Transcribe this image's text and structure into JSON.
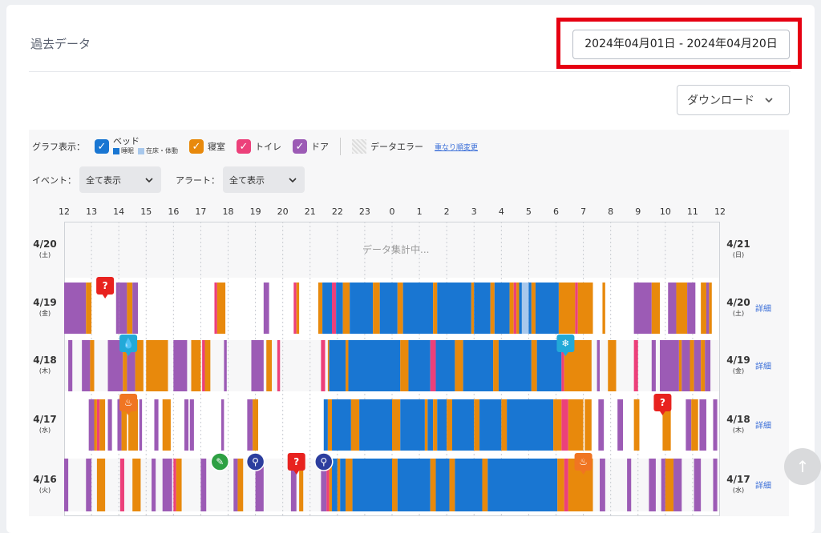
{
  "header": {
    "title": "過去データ",
    "date_range": "2024年04月01日 - 2024年04月20日",
    "download_label": "ダウンロード"
  },
  "legend": {
    "graph_label": "グラフ表示：",
    "bed_label": "ベッド",
    "bed_sleep": "睡眠",
    "bed_awake": "在床・体動",
    "bedroom_label": "寝室",
    "toilet_label": "トイレ",
    "door_label": "ドア",
    "error_label": "データエラー",
    "reorder_link": "重なり順変更"
  },
  "filters": {
    "event_label": "イベント：",
    "event_value": "全て表示",
    "alert_label": "アラート：",
    "alert_value": "全て表示"
  },
  "colors": {
    "sleep": "#1976d2",
    "awake": "#a8c8ec",
    "bedroom": "#e8890c",
    "toilet": "#ec407a",
    "door": "#9c5bb5",
    "alert_red": "#e8221f",
    "alert_orange": "#f07522",
    "alert_cyan": "#22a9d8",
    "event_navy": "#2c3e9e",
    "event_green": "#2ea043"
  },
  "axis": {
    "ticks": [
      "12",
      "13",
      "14",
      "15",
      "16",
      "17",
      "18",
      "19",
      "20",
      "21",
      "22",
      "23",
      "0",
      "1",
      "2",
      "3",
      "4",
      "5",
      "6",
      "7",
      "8",
      "9",
      "10",
      "11",
      "12"
    ]
  },
  "status": {
    "pending": "データ集計中..."
  },
  "days": [
    {
      "left_date": "4/20",
      "left_dow": "(土)",
      "right_date": "4/21",
      "right_dow": "(日)",
      "detail": ""
    },
    {
      "left_date": "4/19",
      "left_dow": "(金)",
      "right_date": "4/20",
      "right_dow": "(土)",
      "detail": "詳細"
    },
    {
      "left_date": "4/18",
      "left_dow": "(木)",
      "right_date": "4/19",
      "right_dow": "(金)",
      "detail": "詳細"
    },
    {
      "left_date": "4/17",
      "left_dow": "(水)",
      "right_date": "4/18",
      "right_dow": "(木)",
      "detail": "詳細"
    },
    {
      "left_date": "4/16",
      "left_dow": "(火)",
      "right_date": "4/17",
      "right_dow": "(水)",
      "detail": "詳細"
    }
  ],
  "timeline": [
    {
      "segments": []
    },
    {
      "segments": [
        [
          "door",
          12.0,
          12.8
        ],
        [
          "bedroom",
          12.8,
          13.0
        ],
        [
          "door",
          13.9,
          14.0
        ],
        [
          "door",
          14.0,
          14.3
        ],
        [
          "bedroom",
          14.3,
          14.5
        ],
        [
          "door",
          14.5,
          14.7
        ],
        [
          "toilet",
          17.5,
          17.6
        ],
        [
          "bedroom",
          17.6,
          17.9
        ],
        [
          "door",
          19.3,
          19.5
        ],
        [
          "toilet",
          20.4,
          20.5
        ],
        [
          "bedroom",
          20.5,
          20.6
        ],
        [
          "bedroom",
          21.3,
          21.45
        ],
        [
          "sleep",
          21.45,
          21.8
        ],
        [
          "toilet",
          21.8,
          21.95
        ],
        [
          "sleep",
          21.95,
          22.2
        ],
        [
          "bedroom",
          22.2,
          22.45
        ],
        [
          "sleep",
          22.45,
          23.3
        ],
        [
          "bedroom",
          23.3,
          23.55
        ],
        [
          "sleep",
          23.55,
          0.2
        ],
        [
          "bedroom",
          0.2,
          0.4
        ],
        [
          "sleep",
          0.4,
          1.5
        ],
        [
          "bedroom",
          1.5,
          1.65
        ],
        [
          "sleep",
          1.65,
          2.9
        ],
        [
          "bedroom",
          2.9,
          3.0
        ],
        [
          "sleep",
          3.0,
          3.6
        ],
        [
          "bedroom",
          3.6,
          3.75
        ],
        [
          "sleep",
          3.75,
          4.3
        ],
        [
          "bedroom",
          4.3,
          4.45
        ],
        [
          "toilet",
          4.45,
          4.55
        ],
        [
          "bedroom",
          4.55,
          4.65
        ],
        [
          "sleep",
          4.65,
          4.75
        ],
        [
          "awake",
          4.75,
          5.0
        ],
        [
          "sleep",
          5.0,
          5.1
        ],
        [
          "bedroom",
          5.1,
          5.25
        ],
        [
          "sleep",
          5.25,
          6.1
        ],
        [
          "bedroom",
          6.1,
          6.7
        ],
        [
          "toilet",
          6.7,
          6.8
        ],
        [
          "bedroom",
          6.8,
          7.35
        ],
        [
          "bedroom",
          7.7,
          7.8
        ],
        [
          "door",
          8.85,
          9.5
        ],
        [
          "bedroom",
          9.5,
          9.8
        ],
        [
          "door",
          10.1,
          10.4
        ],
        [
          "bedroom",
          10.4,
          10.8
        ],
        [
          "door",
          10.8,
          11.1
        ],
        [
          "bedroom",
          11.3,
          11.5
        ],
        [
          "door",
          11.5,
          11.6
        ],
        [
          "bedroom",
          11.6,
          11.7
        ]
      ]
    },
    {
      "segments": [
        [
          "door",
          12.15,
          12.3
        ],
        [
          "door",
          12.65,
          12.95
        ],
        [
          "bedroom",
          12.95,
          13.1
        ],
        [
          "door",
          13.6,
          14.15
        ],
        [
          "bedroom",
          14.15,
          14.3
        ],
        [
          "door",
          14.3,
          14.6
        ],
        [
          "bedroom",
          14.6,
          14.9
        ],
        [
          "bedroom",
          15.0,
          15.8
        ],
        [
          "door",
          16.0,
          16.5
        ],
        [
          "bedroom",
          16.65,
          17.0
        ],
        [
          "toilet",
          17.05,
          17.15
        ],
        [
          "bedroom",
          17.15,
          17.35
        ],
        [
          "door",
          17.85,
          17.95
        ],
        [
          "door",
          18.85,
          19.3
        ],
        [
          "bedroom",
          19.4,
          19.6
        ],
        [
          "toilet",
          19.8,
          19.9
        ],
        [
          "toilet",
          21.4,
          21.55
        ],
        [
          "bedroom",
          21.65,
          21.7
        ],
        [
          "sleep",
          21.7,
          22.3
        ],
        [
          "bedroom",
          22.3,
          22.4
        ],
        [
          "sleep",
          22.4,
          0.3
        ],
        [
          "bedroom",
          0.3,
          0.6
        ],
        [
          "sleep",
          0.6,
          1.4
        ],
        [
          "toilet",
          1.4,
          1.6
        ],
        [
          "sleep",
          1.6,
          2.3
        ],
        [
          "bedroom",
          2.3,
          2.6
        ],
        [
          "sleep",
          2.6,
          3.7
        ],
        [
          "bedroom",
          3.7,
          3.9
        ],
        [
          "sleep",
          3.9,
          5.1
        ],
        [
          "bedroom",
          5.1,
          5.3
        ],
        [
          "sleep",
          5.3,
          6.2
        ],
        [
          "toilet",
          6.2,
          6.3
        ],
        [
          "bedroom",
          6.3,
          7.3
        ],
        [
          "door",
          7.5,
          7.6
        ],
        [
          "bedroom",
          7.9,
          8.2
        ],
        [
          "toilet",
          8.85,
          9.0
        ],
        [
          "door",
          9.5,
          9.65
        ],
        [
          "door",
          9.8,
          10.5
        ],
        [
          "bedroom",
          10.5,
          10.6
        ],
        [
          "door",
          10.6,
          10.9
        ],
        [
          "bedroom",
          10.9,
          11.05
        ],
        [
          "door",
          11.05,
          11.3
        ],
        [
          "bedroom",
          11.3,
          11.45
        ],
        [
          "door",
          11.45,
          11.65
        ]
      ]
    },
    {
      "segments": [
        [
          "door",
          12.9,
          13.1
        ],
        [
          "bedroom",
          13.1,
          13.2
        ],
        [
          "toilet",
          13.2,
          13.3
        ],
        [
          "bedroom",
          13.3,
          13.5
        ],
        [
          "door",
          13.6,
          13.75
        ],
        [
          "door",
          13.95,
          14.1
        ],
        [
          "bedroom",
          14.1,
          14.3
        ],
        [
          "bedroom",
          14.35,
          14.7
        ],
        [
          "door",
          14.75,
          14.85
        ],
        [
          "door",
          15.3,
          15.45
        ],
        [
          "bedroom",
          15.6,
          15.9
        ],
        [
          "door",
          16.4,
          16.55
        ],
        [
          "door",
          16.6,
          16.75
        ],
        [
          "door",
          17.75,
          17.85
        ],
        [
          "door",
          18.7,
          18.9
        ],
        [
          "bedroom",
          18.9,
          19.1
        ],
        [
          "sleep",
          21.5,
          21.65
        ],
        [
          "bedroom",
          21.65,
          21.8
        ],
        [
          "sleep",
          21.8,
          22.5
        ],
        [
          "bedroom",
          22.5,
          22.8
        ],
        [
          "sleep",
          22.8,
          0.0
        ],
        [
          "bedroom",
          0.0,
          0.3
        ],
        [
          "sleep",
          0.3,
          1.2
        ],
        [
          "bedroom",
          1.2,
          1.3
        ],
        [
          "sleep",
          1.3,
          1.5
        ],
        [
          "bedroom",
          1.5,
          1.65
        ],
        [
          "sleep",
          1.65,
          2.0
        ],
        [
          "bedroom",
          2.0,
          2.2
        ],
        [
          "sleep",
          2.2,
          3.0
        ],
        [
          "bedroom",
          3.0,
          3.2
        ],
        [
          "sleep",
          3.2,
          4.0
        ],
        [
          "bedroom",
          4.0,
          4.2
        ],
        [
          "sleep",
          4.2,
          5.9
        ],
        [
          "bedroom",
          5.9,
          6.2
        ],
        [
          "toilet",
          6.2,
          6.45
        ],
        [
          "bedroom",
          6.45,
          7.0
        ],
        [
          "bedroom",
          7.05,
          7.3
        ],
        [
          "door",
          7.55,
          7.75
        ],
        [
          "door",
          8.25,
          8.45
        ],
        [
          "bedroom",
          8.85,
          9.05
        ],
        [
          "bedroom",
          9.9,
          10.2
        ],
        [
          "door",
          10.75,
          10.95
        ],
        [
          "bedroom",
          10.95,
          11.2
        ],
        [
          "door",
          11.25,
          11.5
        ],
        [
          "door",
          11.75,
          11.9
        ]
      ]
    },
    {
      "segments": [
        [
          "door",
          12.0,
          12.15
        ],
        [
          "door",
          12.8,
          13.0
        ],
        [
          "bedroom",
          13.2,
          13.5
        ],
        [
          "toilet",
          14.05,
          14.2
        ],
        [
          "bedroom",
          14.5,
          14.8
        ],
        [
          "door",
          15.2,
          15.35
        ],
        [
          "door",
          15.6,
          15.95
        ],
        [
          "toilet",
          16.0,
          16.1
        ],
        [
          "bedroom",
          16.1,
          16.3
        ],
        [
          "door",
          17.0,
          17.2
        ],
        [
          "door",
          18.2,
          18.35
        ],
        [
          "bedroom",
          18.35,
          18.55
        ],
        [
          "door",
          19.0,
          19.3
        ],
        [
          "door",
          20.3,
          20.5
        ],
        [
          "bedroom",
          20.6,
          20.75
        ],
        [
          "door",
          21.4,
          21.6
        ],
        [
          "toilet",
          21.6,
          21.7
        ],
        [
          "bedroom",
          21.7,
          21.8
        ],
        [
          "sleep",
          21.8,
          22.0
        ],
        [
          "bedroom",
          22.0,
          22.1
        ],
        [
          "sleep",
          22.1,
          22.3
        ],
        [
          "bedroom",
          22.3,
          22.55
        ],
        [
          "sleep",
          22.55,
          0.0
        ],
        [
          "bedroom",
          0.0,
          0.2
        ],
        [
          "sleep",
          0.2,
          1.4
        ],
        [
          "bedroom",
          1.4,
          1.6
        ],
        [
          "sleep",
          1.6,
          2.1
        ],
        [
          "bedroom",
          2.1,
          2.3
        ],
        [
          "sleep",
          2.3,
          3.3
        ],
        [
          "bedroom",
          3.3,
          3.5
        ],
        [
          "sleep",
          3.5,
          6.05
        ],
        [
          "bedroom",
          6.05,
          6.3
        ],
        [
          "toilet",
          6.3,
          6.45
        ],
        [
          "bedroom",
          6.45,
          7.35
        ],
        [
          "door",
          7.6,
          7.8
        ],
        [
          "door",
          8.6,
          8.75
        ],
        [
          "door",
          9.4,
          9.65
        ],
        [
          "door",
          9.85,
          10.0
        ],
        [
          "bedroom",
          10.0,
          10.3
        ],
        [
          "door",
          10.3,
          10.6
        ],
        [
          "door",
          11.05,
          11.3
        ],
        [
          "door",
          11.75,
          11.9
        ]
      ]
    }
  ],
  "markers": [
    {
      "row": 1,
      "hour": 13.5,
      "kind": "alert-person",
      "color": "#e8221f",
      "glyph": "?"
    },
    {
      "row": 2,
      "hour": 14.35,
      "kind": "alert-water",
      "color": "#22a9d8",
      "glyph": "💧"
    },
    {
      "row": 2,
      "hour": 6.35,
      "kind": "alert-cold",
      "color": "#22a9d8",
      "glyph": "❄"
    },
    {
      "row": 3,
      "hour": 14.35,
      "kind": "alert-heat",
      "color": "#f07522",
      "glyph": "♨"
    },
    {
      "row": 3,
      "hour": 9.9,
      "kind": "alert-person",
      "color": "#e8221f",
      "glyph": "?"
    },
    {
      "row": 4,
      "hour": 17.7,
      "kind": "event-clean",
      "color": "#2ea043",
      "glyph": "✎"
    },
    {
      "row": 4,
      "hour": 19.0,
      "kind": "event-light",
      "color": "#2c3e9e",
      "glyph": "⚲"
    },
    {
      "row": 4,
      "hour": 20.5,
      "kind": "alert-person",
      "color": "#e8221f",
      "glyph": "?"
    },
    {
      "row": 4,
      "hour": 21.5,
      "kind": "event-light",
      "color": "#2c3e9e",
      "glyph": "⚲"
    },
    {
      "row": 4,
      "hour": 7.0,
      "kind": "alert-heat",
      "color": "#f07522",
      "glyph": "♨"
    }
  ]
}
